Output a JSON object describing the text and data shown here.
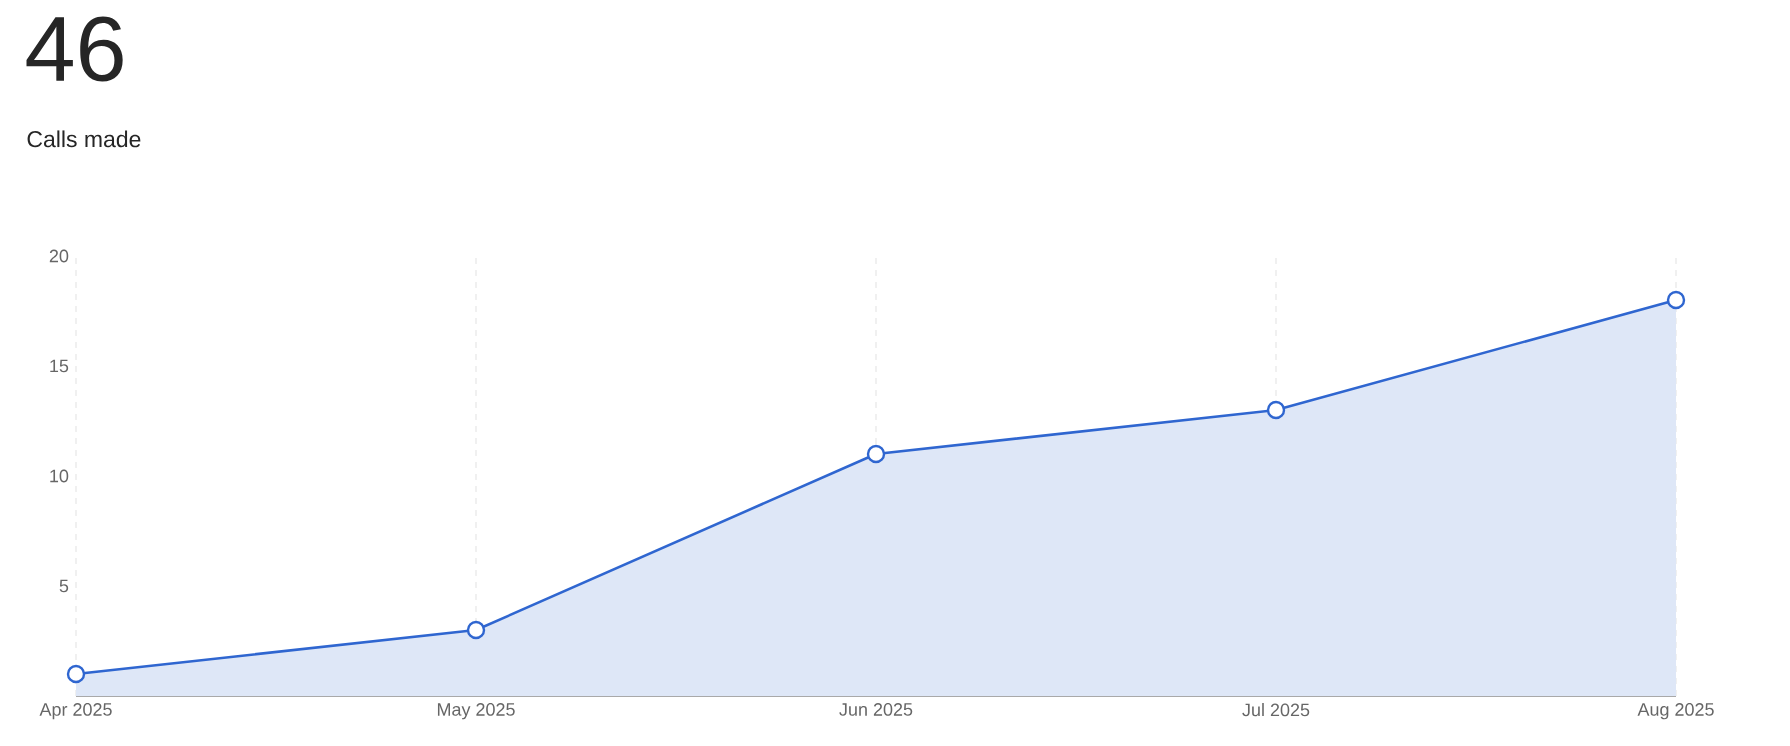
{
  "chart_data": {
    "type": "area",
    "title": "46",
    "subtitle": "Calls made",
    "categories": [
      "Apr 2025",
      "May 2025",
      "Jun 2025",
      "Jul 2025",
      "Aug 2025"
    ],
    "series": [
      {
        "color": "#2f66d0",
        "values": [
          1,
          3,
          11,
          13,
          18
        ]
      }
    ],
    "ylim": [
      0,
      20
    ],
    "yticks": [
      5,
      10,
      15,
      20
    ],
    "grid": "x",
    "marker": "circle"
  }
}
